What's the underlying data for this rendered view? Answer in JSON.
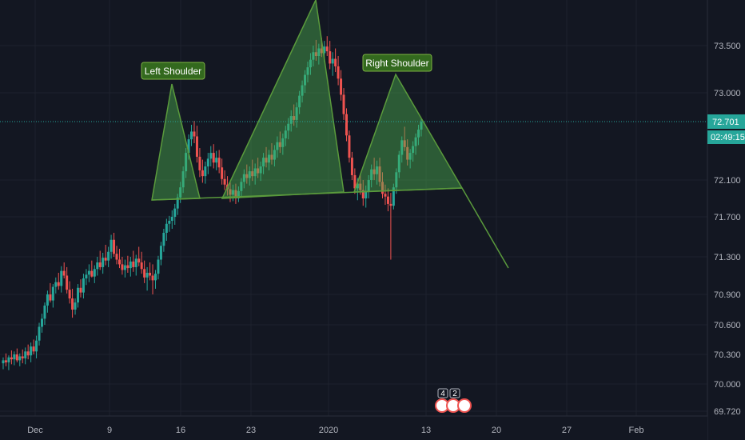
{
  "chart_data": {
    "type": "candlestick",
    "title": "",
    "xlabel": "",
    "ylabel": "",
    "ylim": [
      69.72,
      73.86
    ],
    "grid": true,
    "y_ticks": [
      "73.500",
      "73.000",
      "72.100",
      "71.700",
      "71.300",
      "70.900",
      "70.600",
      "70.300",
      "70.000",
      "69.720"
    ],
    "x_ticks": [
      "Dec",
      "9",
      "16",
      "23",
      "2020",
      "13",
      "20",
      "27",
      "Feb"
    ],
    "last_price": "72.701",
    "countdown": "02:49:15",
    "annotations": [
      {
        "name": "left-shoulder-label",
        "text": "Left Shoulder"
      },
      {
        "name": "right-shoulder-label",
        "text": "Right Shoulder"
      }
    ],
    "event_badges": [
      "4",
      "2"
    ],
    "colors": {
      "background": "#131722",
      "grid": "#1e222d",
      "up_candle": "#26a69a",
      "down_candle": "#ef5350",
      "pattern_fill": "#4caf50",
      "pattern_stroke": "#5a9a3c",
      "label_bg": "#33691e",
      "price_tag": "#26a69a",
      "axis_text": "#b2b5be"
    },
    "candles": [
      [
        70.21,
        70.27,
        70.15,
        70.24
      ],
      [
        70.24,
        70.31,
        70.18,
        70.22
      ],
      [
        70.22,
        70.29,
        70.14,
        70.27
      ],
      [
        70.27,
        70.34,
        70.2,
        70.25
      ],
      [
        70.25,
        70.33,
        70.19,
        70.3
      ],
      [
        70.3,
        70.36,
        70.22,
        70.24
      ],
      [
        70.24,
        70.31,
        70.18,
        70.28
      ],
      [
        70.28,
        70.35,
        70.21,
        70.26
      ],
      [
        70.26,
        70.37,
        70.2,
        70.33
      ],
      [
        70.33,
        70.4,
        70.25,
        70.29
      ],
      [
        70.29,
        70.42,
        70.22,
        70.38
      ],
      [
        70.38,
        70.45,
        70.3,
        70.33
      ],
      [
        70.33,
        70.49,
        70.26,
        70.44
      ],
      [
        70.44,
        70.62,
        70.39,
        70.58
      ],
      [
        70.58,
        70.71,
        70.52,
        70.66
      ],
      [
        70.66,
        70.82,
        70.6,
        70.79
      ],
      [
        70.79,
        70.94,
        70.72,
        70.9
      ],
      [
        70.9,
        71.02,
        70.82,
        70.84
      ],
      [
        70.84,
        71.01,
        70.77,
        70.98
      ],
      [
        70.98,
        71.08,
        70.91,
        71.03
      ],
      [
        71.03,
        71.13,
        70.95,
        70.99
      ],
      [
        70.99,
        71.2,
        70.92,
        71.15
      ],
      [
        71.15,
        71.24,
        71.07,
        71.1
      ],
      [
        71.1,
        71.19,
        70.91,
        70.95
      ],
      [
        70.95,
        71.04,
        70.81,
        70.86
      ],
      [
        70.86,
        70.96,
        70.67,
        70.75
      ],
      [
        70.75,
        70.86,
        70.7,
        70.82
      ],
      [
        70.82,
        71.01,
        70.77,
        70.97
      ],
      [
        70.97,
        71.06,
        70.87,
        70.92
      ],
      [
        70.92,
        71.12,
        70.86,
        71.07
      ],
      [
        71.07,
        71.17,
        71.0,
        71.11
      ],
      [
        71.11,
        71.22,
        71.03,
        71.15
      ],
      [
        71.15,
        71.26,
        71.08,
        71.09
      ],
      [
        71.09,
        71.21,
        71.02,
        71.17
      ],
      [
        71.17,
        71.3,
        71.1,
        71.24
      ],
      [
        71.24,
        71.36,
        71.16,
        71.19
      ],
      [
        71.19,
        71.34,
        71.12,
        71.29
      ],
      [
        71.29,
        71.42,
        71.21,
        71.26
      ],
      [
        71.26,
        71.4,
        71.19,
        71.35
      ],
      [
        71.35,
        71.52,
        71.28,
        71.47
      ],
      [
        71.47,
        71.54,
        71.3,
        71.33
      ],
      [
        71.33,
        71.41,
        71.22,
        71.27
      ],
      [
        71.27,
        71.38,
        71.18,
        71.22
      ],
      [
        71.22,
        71.3,
        71.11,
        71.16
      ],
      [
        71.16,
        71.27,
        71.08,
        71.21
      ],
      [
        71.21,
        71.31,
        71.13,
        71.18
      ],
      [
        71.18,
        71.3,
        71.09,
        71.25
      ],
      [
        71.25,
        71.36,
        71.14,
        71.19
      ],
      [
        71.19,
        71.32,
        71.1,
        71.28
      ],
      [
        71.28,
        71.4,
        71.2,
        71.24
      ],
      [
        71.24,
        71.35,
        71.12,
        71.17
      ],
      [
        71.17,
        71.26,
        71.02,
        71.08
      ],
      [
        71.08,
        71.19,
        70.94,
        71.13
      ],
      [
        71.13,
        71.24,
        71.05,
        71.1
      ],
      [
        71.1,
        71.22,
        70.9,
        71.05
      ],
      [
        71.05,
        71.16,
        70.96,
        71.12
      ],
      [
        71.12,
        71.31,
        71.06,
        71.27
      ],
      [
        71.27,
        71.45,
        71.21,
        71.41
      ],
      [
        71.41,
        71.58,
        71.35,
        71.54
      ],
      [
        71.54,
        71.68,
        71.46,
        71.63
      ],
      [
        71.63,
        71.71,
        71.55,
        71.66
      ],
      [
        71.66,
        71.77,
        71.58,
        71.7
      ],
      [
        71.7,
        71.84,
        71.62,
        71.79
      ],
      [
        71.79,
        71.95,
        71.72,
        71.91
      ],
      [
        71.91,
        72.08,
        71.85,
        72.02
      ],
      [
        72.02,
        72.24,
        71.96,
        72.19
      ],
      [
        72.19,
        72.43,
        72.12,
        72.38
      ],
      [
        72.38,
        72.57,
        72.31,
        72.52
      ],
      [
        72.52,
        72.67,
        72.45,
        72.6
      ],
      [
        72.6,
        72.71,
        72.48,
        72.55
      ],
      [
        72.55,
        72.66,
        72.28,
        72.34
      ],
      [
        72.34,
        72.43,
        72.13,
        72.2
      ],
      [
        72.2,
        72.31,
        72.07,
        72.14
      ],
      [
        72.14,
        72.29,
        72.06,
        72.24
      ],
      [
        72.24,
        72.38,
        72.16,
        72.32
      ],
      [
        72.32,
        72.45,
        72.24,
        72.38
      ],
      [
        72.38,
        72.47,
        72.22,
        72.28
      ],
      [
        72.28,
        72.4,
        72.2,
        72.33
      ],
      [
        72.33,
        72.41,
        72.17,
        72.23
      ],
      [
        72.23,
        72.32,
        72.05,
        72.11
      ],
      [
        72.11,
        72.2,
        71.99,
        72.05
      ],
      [
        72.05,
        72.14,
        71.93,
        72.0
      ],
      [
        72.0,
        72.09,
        71.86,
        71.94
      ],
      [
        71.94,
        72.05,
        71.87,
        71.99
      ],
      [
        71.99,
        72.06,
        71.84,
        71.9
      ],
      [
        71.9,
        72.03,
        71.86,
        71.98
      ],
      [
        71.98,
        72.12,
        71.92,
        72.08
      ],
      [
        72.08,
        72.21,
        72.01,
        72.16
      ],
      [
        72.16,
        72.26,
        72.06,
        72.12
      ],
      [
        72.12,
        72.24,
        72.04,
        72.19
      ],
      [
        72.19,
        72.31,
        72.09,
        72.14
      ],
      [
        72.14,
        72.27,
        72.05,
        72.22
      ],
      [
        72.22,
        72.33,
        72.12,
        72.17
      ],
      [
        72.17,
        72.29,
        72.09,
        72.24
      ],
      [
        72.24,
        72.38,
        72.16,
        72.33
      ],
      [
        72.33,
        72.44,
        72.23,
        72.28
      ],
      [
        72.28,
        72.41,
        72.2,
        72.36
      ],
      [
        72.36,
        72.48,
        72.26,
        72.31
      ],
      [
        72.31,
        72.46,
        72.24,
        72.41
      ],
      [
        72.41,
        72.55,
        72.33,
        72.49
      ],
      [
        72.49,
        72.6,
        72.38,
        72.44
      ],
      [
        72.44,
        72.58,
        72.36,
        72.53
      ],
      [
        72.53,
        72.66,
        72.45,
        72.61
      ],
      [
        72.61,
        72.74,
        72.52,
        72.68
      ],
      [
        72.68,
        72.82,
        72.6,
        72.76
      ],
      [
        72.76,
        72.88,
        72.66,
        72.72
      ],
      [
        72.72,
        72.9,
        72.64,
        72.85
      ],
      [
        72.85,
        73.02,
        72.78,
        72.97
      ],
      [
        72.97,
        73.13,
        72.9,
        73.08
      ],
      [
        73.08,
        73.24,
        73.0,
        73.19
      ],
      [
        73.19,
        73.33,
        73.11,
        73.27
      ],
      [
        73.27,
        73.42,
        73.19,
        73.35
      ],
      [
        73.35,
        73.5,
        73.28,
        73.43
      ],
      [
        73.43,
        73.56,
        73.34,
        73.39
      ],
      [
        73.39,
        73.52,
        73.3,
        73.47
      ],
      [
        73.47,
        73.58,
        73.38,
        73.42
      ],
      [
        73.42,
        73.55,
        73.33,
        73.49
      ],
      [
        73.49,
        73.6,
        73.39,
        73.44
      ],
      [
        73.44,
        73.55,
        73.25,
        73.31
      ],
      [
        73.31,
        73.43,
        73.18,
        73.36
      ],
      [
        73.36,
        73.47,
        73.22,
        73.28
      ],
      [
        73.28,
        73.39,
        73.08,
        73.15
      ],
      [
        73.15,
        73.24,
        72.92,
        72.98
      ],
      [
        72.98,
        73.05,
        72.72,
        72.78
      ],
      [
        72.78,
        72.84,
        72.5,
        72.56
      ],
      [
        72.56,
        72.61,
        72.28,
        72.33
      ],
      [
        72.33,
        72.39,
        72.1,
        72.15
      ],
      [
        72.15,
        72.22,
        71.95,
        72.01
      ],
      [
        72.01,
        72.12,
        71.88,
        72.06
      ],
      [
        72.06,
        72.15,
        71.94,
        71.99
      ],
      [
        71.99,
        72.1,
        71.82,
        71.9
      ],
      [
        71.9,
        72.04,
        71.8,
        71.98
      ],
      [
        71.98,
        72.15,
        71.9,
        72.1
      ],
      [
        72.1,
        72.26,
        72.02,
        72.21
      ],
      [
        72.21,
        72.33,
        72.1,
        72.16
      ],
      [
        72.16,
        72.3,
        72.05,
        72.24
      ],
      [
        72.24,
        72.33,
        72.03,
        72.08
      ],
      [
        72.08,
        72.18,
        71.9,
        71.95
      ],
      [
        71.95,
        72.05,
        71.83,
        71.92
      ],
      [
        71.92,
        72.01,
        71.76,
        71.84
      ],
      [
        71.84,
        71.96,
        71.27,
        71.82
      ],
      [
        71.82,
        72.06,
        71.78,
        72.02
      ],
      [
        72.02,
        72.22,
        71.95,
        72.18
      ],
      [
        72.18,
        72.4,
        72.12,
        72.36
      ],
      [
        72.36,
        72.55,
        72.28,
        72.51
      ],
      [
        72.51,
        72.65,
        72.4,
        72.44
      ],
      [
        72.44,
        72.52,
        72.25,
        72.31
      ],
      [
        72.31,
        72.42,
        72.22,
        72.38
      ],
      [
        72.38,
        72.5,
        72.29,
        72.45
      ],
      [
        72.45,
        72.58,
        72.36,
        72.54
      ],
      [
        72.54,
        72.67,
        72.46,
        72.62
      ],
      [
        72.62,
        72.74,
        72.55,
        72.7
      ]
    ]
  }
}
